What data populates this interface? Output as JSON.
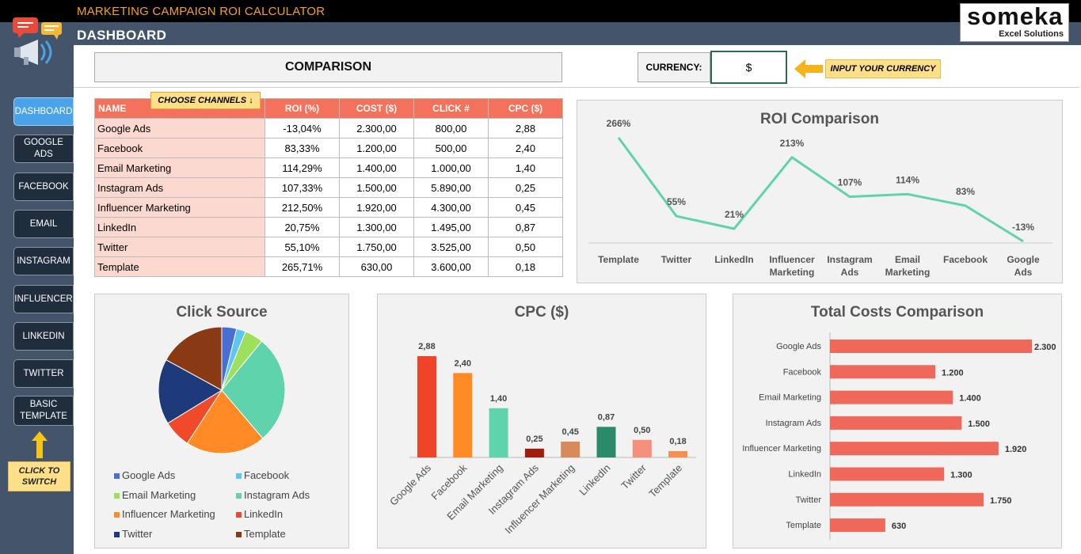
{
  "app": {
    "title": "MARKETING CAMPAIGN ROI CALCULATOR",
    "page_title": "DASHBOARD"
  },
  "logo": {
    "brand": "someka",
    "sub": "Excel Solutions"
  },
  "nav": [
    {
      "label": "DASHBOARD",
      "active": true
    },
    {
      "label": "GOOGLE ADS"
    },
    {
      "label": "FACEBOOK"
    },
    {
      "label": "EMAIL"
    },
    {
      "label": "INSTAGRAM"
    },
    {
      "label": "INFLUENCER"
    },
    {
      "label": "LINKEDIN"
    },
    {
      "label": "TWITTER"
    },
    {
      "label": "BASIC TEMPLATE"
    }
  ],
  "click_note": "CLICK TO SWITCH",
  "comparison_label": "COMPARISON",
  "currency": {
    "label": "CURRENCY:",
    "value": "$",
    "note": "INPUT YOUR CURRENCY"
  },
  "choose_note": "CHOOSE CHANNELS ↓",
  "table": {
    "headers": [
      "NAME",
      "ROI (%)",
      "COST ($)",
      "CLICK #",
      "CPC  ($)"
    ],
    "rows": [
      [
        "Google Ads",
        "-13,04%",
        "2.300,00",
        "800,00",
        "2,88"
      ],
      [
        "Facebook",
        "83,33%",
        "1.200,00",
        "500,00",
        "2,40"
      ],
      [
        "Email Marketing",
        "114,29%",
        "1.400,00",
        "1.000,00",
        "1,40"
      ],
      [
        "Instagram Ads",
        "107,33%",
        "1.500,00",
        "5.890,00",
        "0,25"
      ],
      [
        "Influencer Marketing",
        "212,50%",
        "1.920,00",
        "4.300,00",
        "0,45"
      ],
      [
        "LinkedIn",
        "20,75%",
        "1.300,00",
        "1.495,00",
        "0,87"
      ],
      [
        "Twitter",
        "55,10%",
        "1.750,00",
        "3.525,00",
        "0,50"
      ],
      [
        "Template",
        "265,71%",
        "630,00",
        "3.600,00",
        "0,18"
      ]
    ]
  },
  "chart_data": [
    {
      "type": "line",
      "title": "ROI Comparison",
      "categories": [
        "Template",
        "Twitter",
        "LinkedIn",
        "Influencer Marketing",
        "Instagram Ads",
        "Email Marketing",
        "Facebook",
        "Google Ads"
      ],
      "values": [
        266,
        55,
        21,
        213,
        107,
        114,
        83,
        -13
      ],
      "labels": [
        "266%",
        "55%",
        "21%",
        "213%",
        "107%",
        "114%",
        "83%",
        "-13%"
      ],
      "color": "#5fd3ac",
      "grid": false
    },
    {
      "type": "pie",
      "title": "Click Source",
      "categories": [
        "Google Ads",
        "Facebook",
        "Email Marketing",
        "Instagram Ads",
        "Influencer Marketing",
        "LinkedIn",
        "Twitter",
        "Template"
      ],
      "values": [
        800,
        500,
        1000,
        5890,
        4300,
        1495,
        3525,
        3600
      ],
      "colors": [
        "#4a6fd4",
        "#5cc6f0",
        "#9ee05c",
        "#5fd3ac",
        "#ff8a26",
        "#f04a2a",
        "#1f3a7a",
        "#8a3a12"
      ],
      "legend": "bottom"
    },
    {
      "type": "bar",
      "title": "CPC  ($)",
      "categories": [
        "Google Ads",
        "Facebook",
        "Email Marketing",
        "Instagram Ads",
        "Influencer Marketing",
        "LinkedIn",
        "Twitter",
        "Template"
      ],
      "values": [
        2.88,
        2.4,
        1.4,
        0.25,
        0.45,
        0.87,
        0.5,
        0.18
      ],
      "labels": [
        "2,88",
        "2,40",
        "1,40",
        "0,25",
        "0,45",
        "0,87",
        "0,50",
        "0,18"
      ],
      "colors": [
        "#f0442a",
        "#ff8a26",
        "#5fd3ac",
        "#a01c0c",
        "#d88a5a",
        "#2a8a6a",
        "#f4907c",
        "#f49050"
      ],
      "ylim": [
        0,
        3
      ]
    },
    {
      "type": "bar",
      "orientation": "horizontal",
      "title": "Total Costs Comparison",
      "categories": [
        "Google Ads",
        "Facebook",
        "Email Marketing",
        "Instagram Ads",
        "Influencer Marketing",
        "LinkedIn",
        "Twitter",
        "Template"
      ],
      "values": [
        2300,
        1200,
        1400,
        1500,
        1920,
        1300,
        1750,
        630
      ],
      "labels": [
        "2.300",
        "1.200",
        "1.400",
        "1.500",
        "1.920",
        "1.300",
        "1.750",
        "630"
      ],
      "color": "#f0685a",
      "xlim": [
        0,
        2300
      ]
    }
  ]
}
